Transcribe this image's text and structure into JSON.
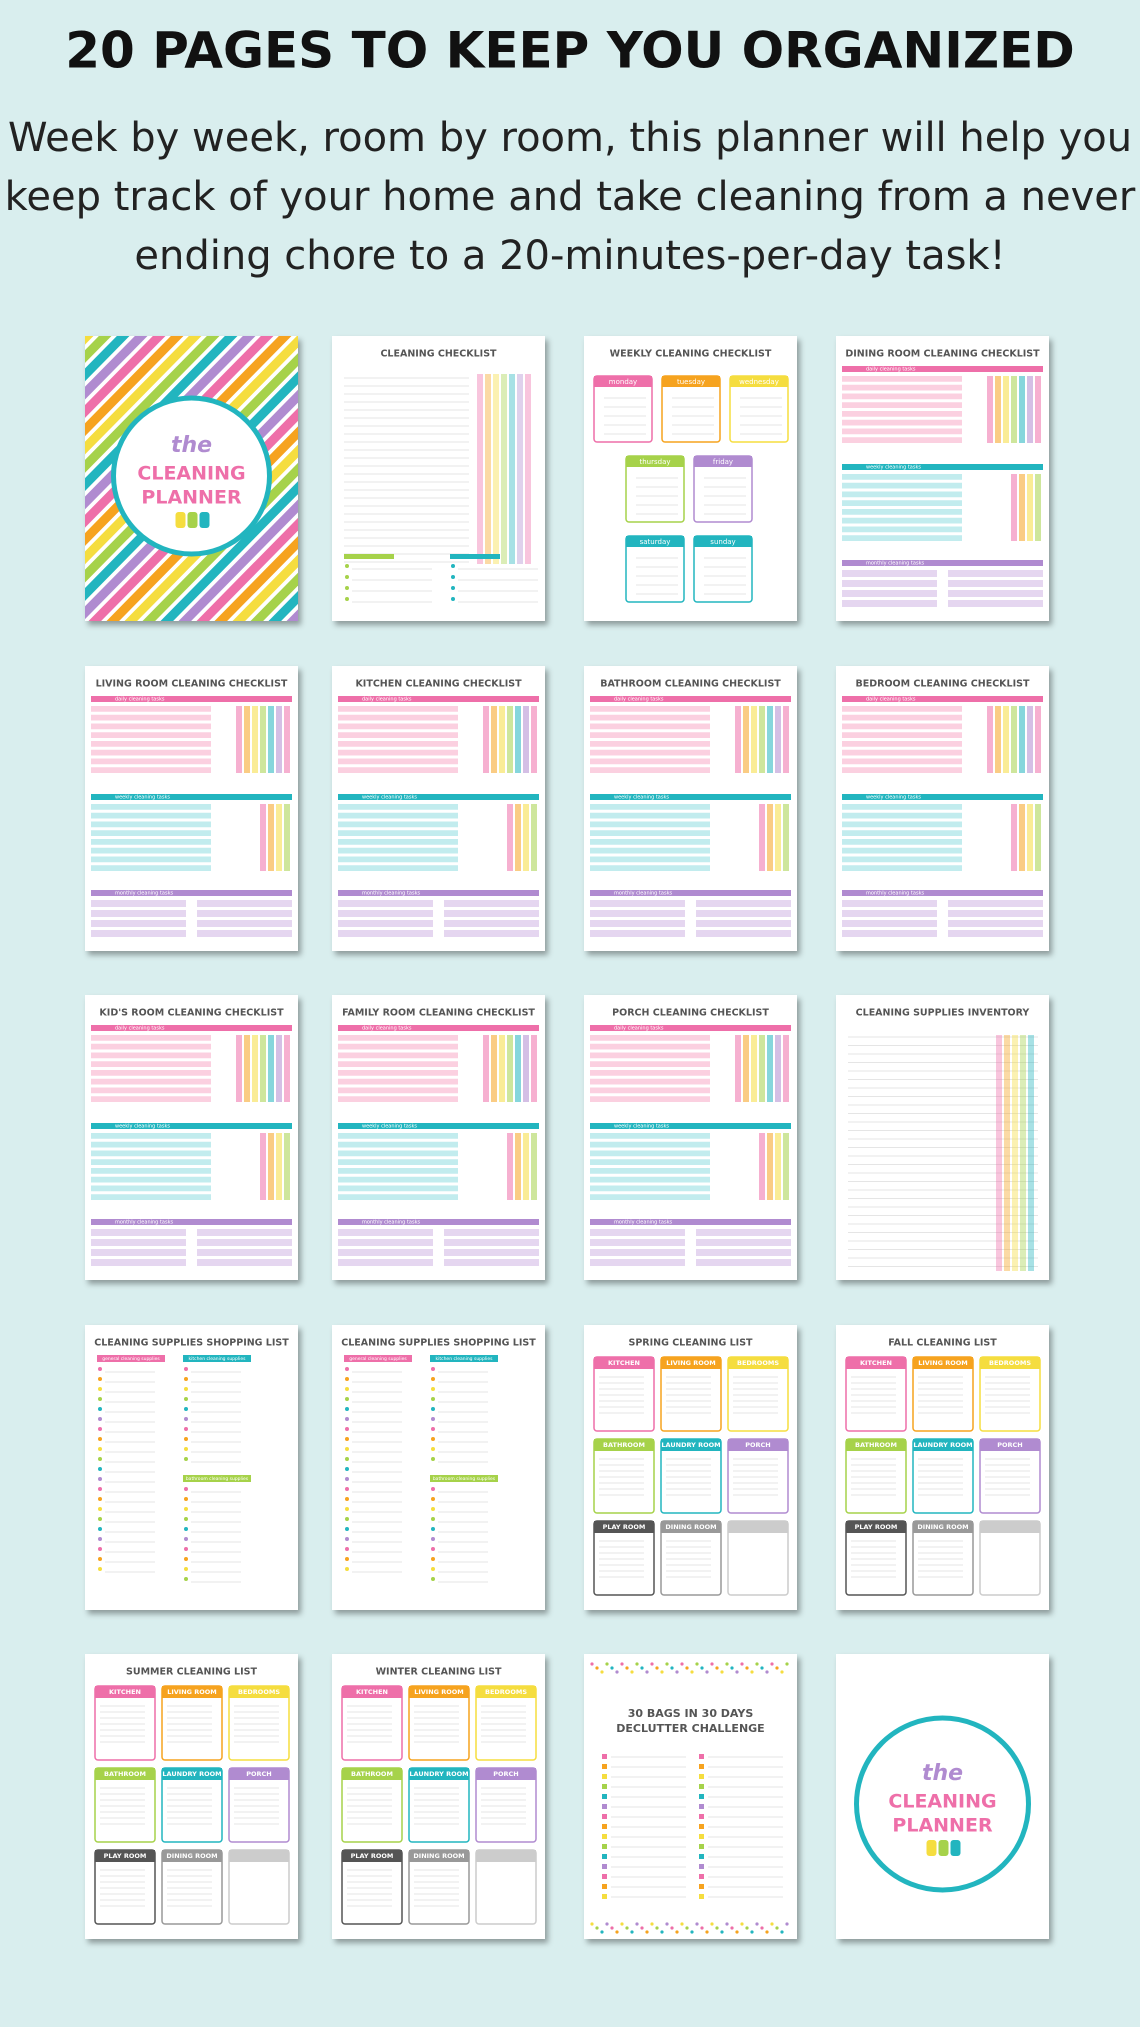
{
  "header": {
    "title": "20 PAGES TO KEEP YOU ORGANIZED",
    "subtitle_lines": [
      "Week by week, room by room, this planner will help you",
      "keep track of your home and take cleaning from a never",
      "ending chore to a 20-minutes-per-day task!"
    ]
  },
  "labels": {
    "daily": "daily cleaning tasks",
    "weekly": "weekly cleaning tasks",
    "monthly": "monthly cleaning tasks",
    "weekdays": [
      "monday",
      "tuesday",
      "wednesday",
      "thursday",
      "friday",
      "saturday",
      "sunday"
    ],
    "rooms": [
      "KITCHEN",
      "LIVING ROOM",
      "BEDROOMS",
      "BATHROOM",
      "LAUNDRY ROOM",
      "PORCH",
      "PLAY ROOM",
      "DINING ROOM"
    ],
    "supplies": [
      "general cleaning supplies",
      "kitchen cleaning supplies",
      "bathroom cleaning supplies"
    ]
  },
  "pages": [
    {
      "lines": [
        "the",
        "CLEANING",
        "PLANNER"
      ]
    },
    {
      "title": "CLEANING CHECKLIST"
    },
    {
      "title": "WEEKLY CLEANING CHECKLIST"
    },
    {
      "title": "DINING ROOM CLEANING CHECKLIST"
    },
    {
      "title": "LIVING ROOM CLEANING CHECKLIST"
    },
    {
      "title": "KITCHEN CLEANING CHECKLIST"
    },
    {
      "title": "BATHROOM CLEANING CHECKLIST"
    },
    {
      "title": "BEDROOM CLEANING CHECKLIST"
    },
    {
      "title": "KID'S ROOM CLEANING CHECKLIST"
    },
    {
      "title": "FAMILY ROOM CLEANING CHECKLIST"
    },
    {
      "title": "PORCH CLEANING CHECKLIST"
    },
    {
      "title": "CLEANING SUPPLIES INVENTORY"
    },
    {
      "title": "CLEANING SUPPLIES SHOPPING LIST"
    },
    {
      "title": "CLEANING SUPPLIES SHOPPING LIST"
    },
    {
      "title": "SPRING CLEANING LIST"
    },
    {
      "title": "FALL CLEANING LIST"
    },
    {
      "title": "SUMMER CLEANING LIST"
    },
    {
      "title": "WINTER CLEANING LIST"
    },
    {
      "lines": [
        "30 BAGS IN 30 DAYS",
        "DECLUTTER CHALLENGE"
      ]
    },
    {
      "lines": [
        "the",
        "CLEANING",
        "PLANNER"
      ]
    }
  ]
}
